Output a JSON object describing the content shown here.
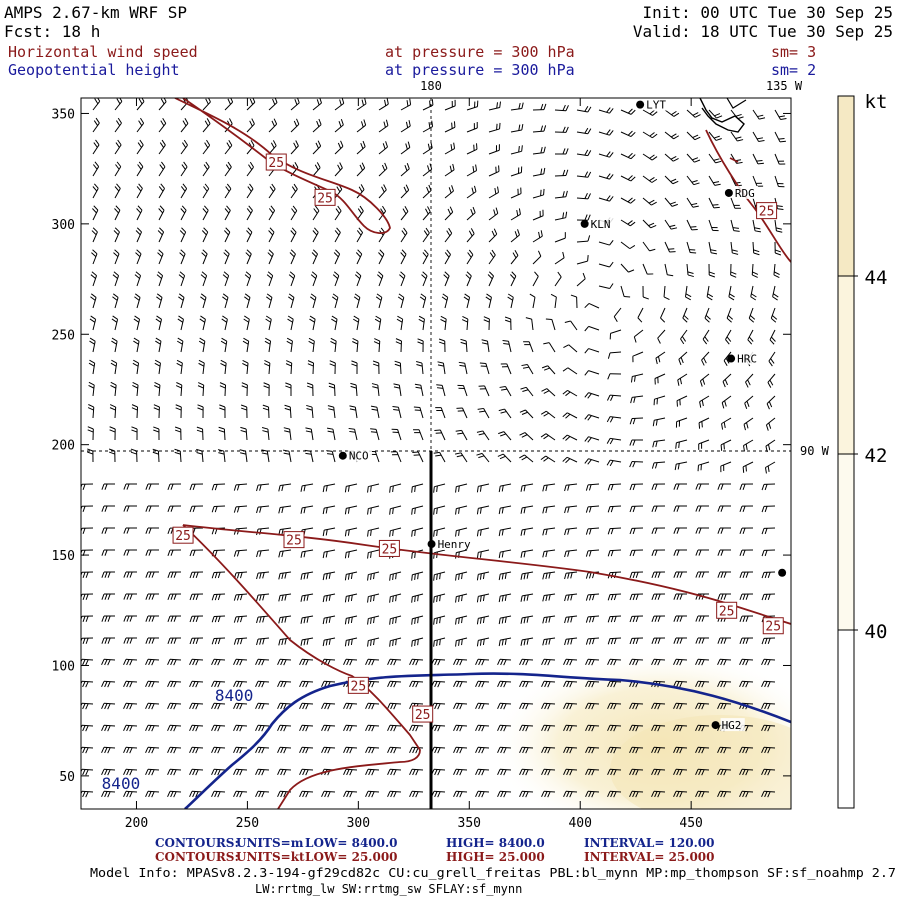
{
  "header": {
    "title": "AMPS 2.67-km WRF SP",
    "fcst": "Fcst:   18 h",
    "init": "Init: 00 UTC Tue 30 Sep 25",
    "valid": "Valid: 18 UTC Tue 30 Sep 25",
    "field1": "Horizontal wind speed",
    "field1_level": "at pressure =  300 hPa",
    "field1_sm": "sm= 3",
    "field2": "Geopotential height",
    "field2_level": "at pressure =  300 hPa",
    "field2_sm": "sm= 2"
  },
  "map": {
    "meridian_180": "180",
    "meridian_135w": "135 W",
    "parallel_90w": "90 W",
    "x_ticks": [
      200,
      250,
      300,
      350,
      400,
      450
    ],
    "y_ticks": [
      50,
      100,
      150,
      200,
      250,
      300,
      350
    ],
    "x_range": [
      175,
      495
    ],
    "y_range": [
      35,
      357
    ],
    "stations": [
      {
        "name": "LYT",
        "x": 427,
        "y": 354
      },
      {
        "name": "RDG",
        "x": 467,
        "y": 314
      },
      {
        "name": "KLN",
        "x": 402,
        "y": 300
      },
      {
        "name": "HRC",
        "x": 468,
        "y": 239
      },
      {
        "name": "NCO",
        "x": 293,
        "y": 195
      },
      {
        "name": "Henry",
        "x": 333,
        "y": 155
      },
      {
        "name": "HG2",
        "x": 461,
        "y": 73
      },
      {
        "name": "",
        "x": 491,
        "y": 142
      }
    ],
    "wind_labels": [
      {
        "text": "25",
        "x": 263,
        "y": 328
      },
      {
        "text": "25",
        "x": 285,
        "y": 312
      },
      {
        "text": "25",
        "x": 221,
        "y": 159
      },
      {
        "text": "25",
        "x": 271,
        "y": 157
      },
      {
        "text": "25",
        "x": 314,
        "y": 153
      },
      {
        "text": "25",
        "x": 466,
        "y": 125
      },
      {
        "text": "25",
        "x": 487,
        "y": 118
      },
      {
        "text": "25",
        "x": 484,
        "y": 306
      },
      {
        "text": "25",
        "x": 300,
        "y": 91
      },
      {
        "text": "25",
        "x": 329,
        "y": 78
      }
    ],
    "height_labels": [
      {
        "text": "8400",
        "x": 244,
        "y": 84
      },
      {
        "text": "8400",
        "x": 193,
        "y": 44
      }
    ]
  },
  "colorbar": {
    "unit": "kt",
    "levels": [
      40,
      42,
      44
    ],
    "colors": [
      "#ffffff",
      "#fbf4dd",
      "#f5e9c4"
    ]
  },
  "footer": {
    "line1_label": "CONTOURS:",
    "line1_units": "UNITS=m",
    "line1_low": "LOW=  8400.0",
    "line1_high": "HIGH=  8400.0",
    "line1_interval": "INTERVAL=   120.00",
    "line2_label": "CONTOURS:",
    "line2_units": "UNITS=kt",
    "line2_low": "LOW=  25.000",
    "line2_high": "HIGH=  25.000",
    "line2_interval": "INTERVAL=   25.000",
    "model_info": "Model Info: MPASv8.2.3-194-gf29cd82c CU:cu_grell_freitas PBL:bl_mynn MP:mp_thompson SF:sf_noahmp 2.7",
    "model_info2": "LW:rrtmg_lw SW:rrtmg_sw SFLAY:sf_mynn"
  },
  "colors": {
    "header_red": "#8b1a1a",
    "header_blue": "#1a1a9c",
    "wind_contour": "#8b1a1a",
    "height_contour": "#14248c",
    "highlight": "#f7edc6"
  }
}
